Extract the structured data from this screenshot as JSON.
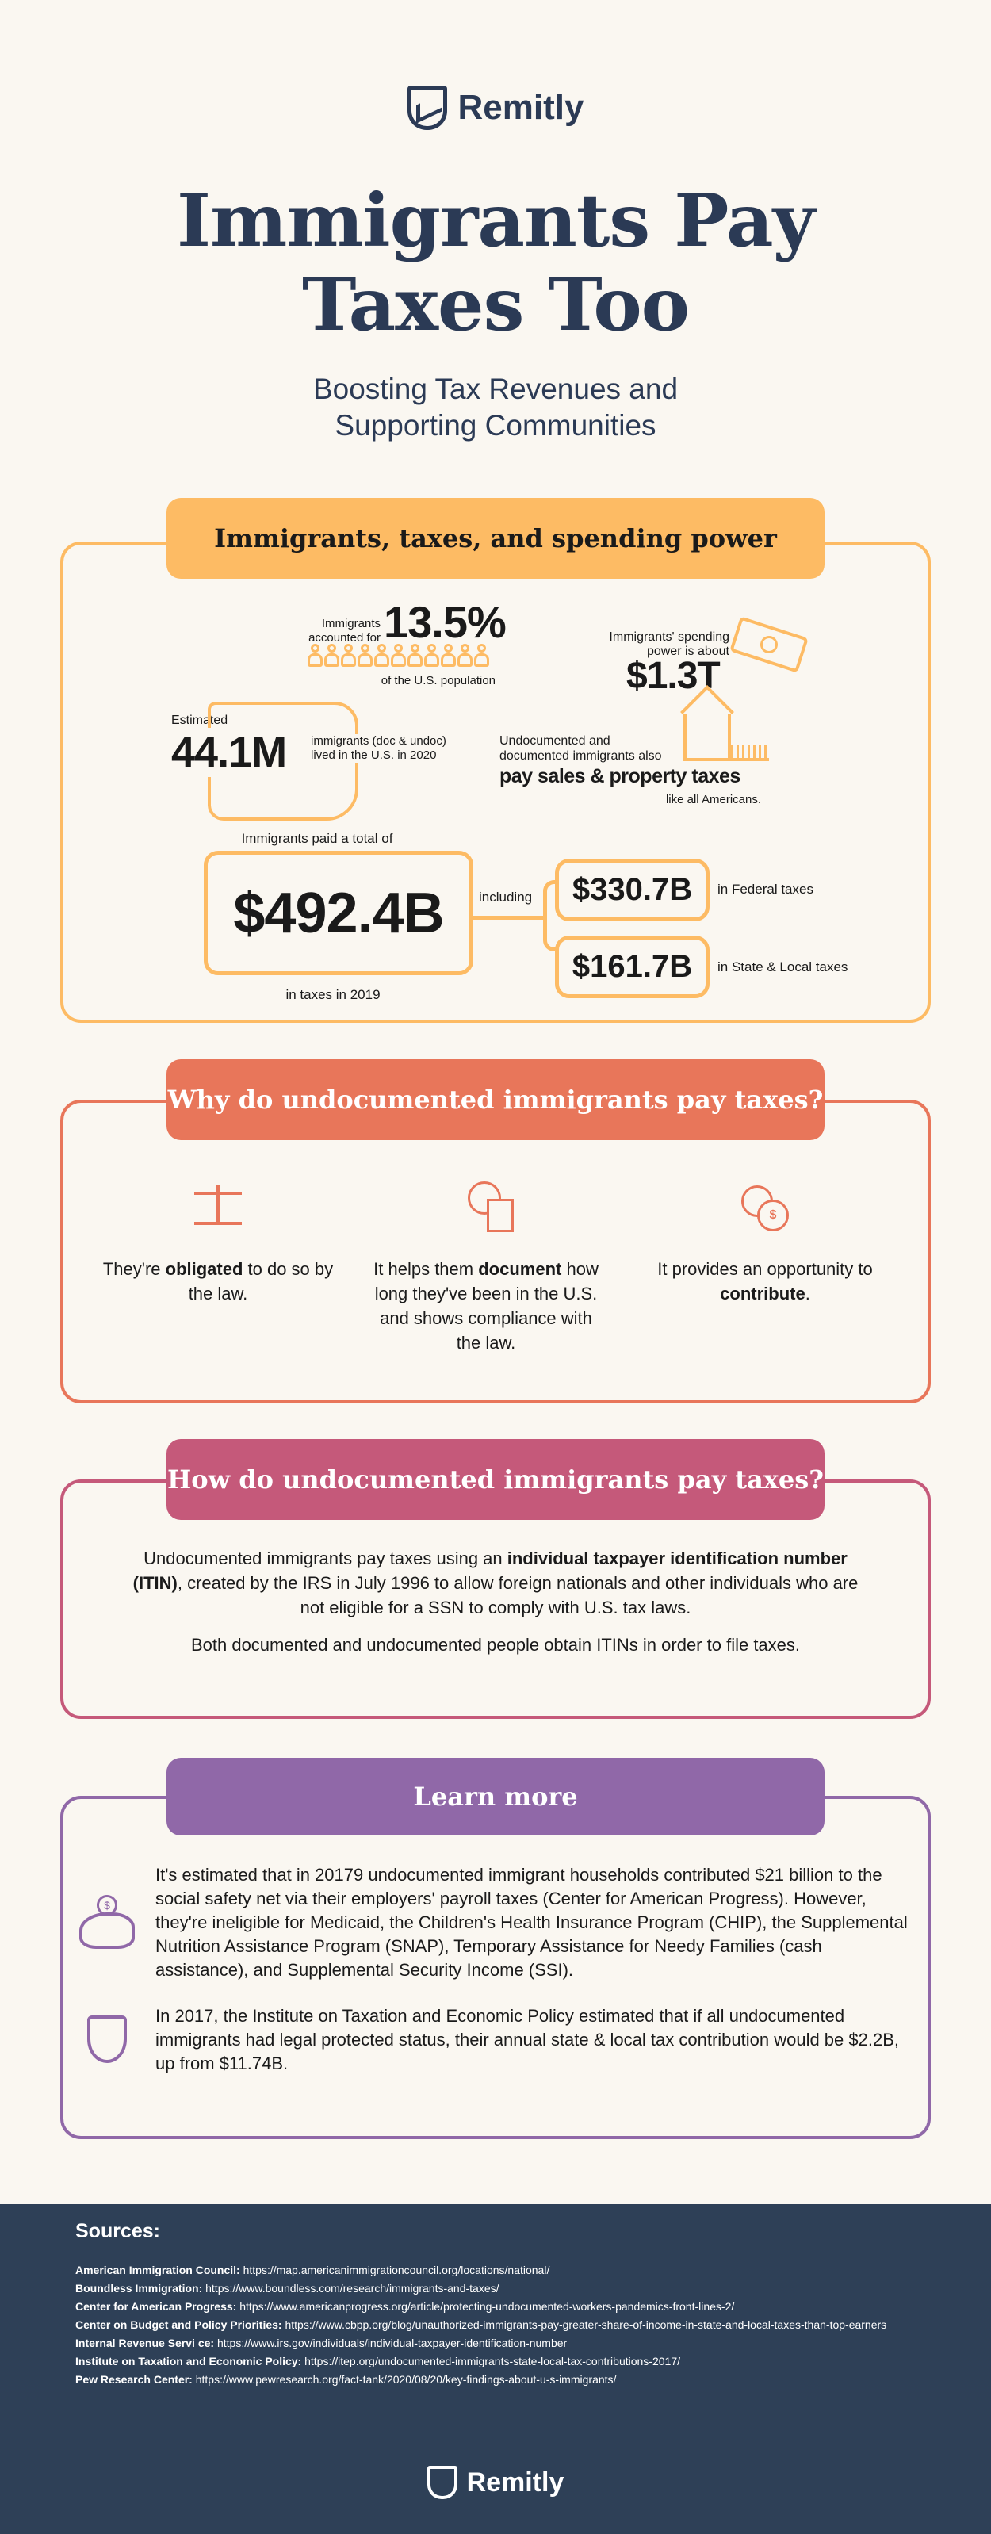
{
  "brand": "Remitly",
  "header": {
    "title_line1": "Immigrants Pay",
    "title_line2": "Taxes Too",
    "subtitle_line1": "Boosting Tax Revenues and",
    "subtitle_line2": "Supporting Communities"
  },
  "colors": {
    "navy": "#2b3a55",
    "orange": "#fdbb64",
    "coral": "#e8765a",
    "rose": "#c5597a",
    "purple": "#9068a8",
    "footer": "#2e4057",
    "background": "#faf7f1"
  },
  "section1": {
    "title": "Immigrants, taxes, and spending power",
    "population": {
      "pre1": "Immigrants",
      "pre2": "accounted for",
      "value": "13.5%",
      "post": "of the U.S. population",
      "icon": "people-icon"
    },
    "spending": {
      "pre1": "Immigrants' spending",
      "pre2": "power is about",
      "value": "$1.3T",
      "icon": "money-icon"
    },
    "count": {
      "pre": "Estimated",
      "value": "44.1M",
      "post1": "immigrants (doc & undoc)",
      "post2": "lived in the U.S. in 2020",
      "icon": "us-map-icon"
    },
    "property": {
      "pre1": "Undocumented and",
      "pre2": "documented immigrants also",
      "bold": "pay sales & property taxes",
      "post": "like all Americans.",
      "icon": "house-icon"
    },
    "total": {
      "pre": "Immigrants paid a total of",
      "value": "$492.4B",
      "post": "in taxes in 2019",
      "including": "including"
    },
    "federal": {
      "value": "$330.7B",
      "label": "in Federal taxes"
    },
    "state": {
      "value": "$161.7B",
      "label": "in State & Local taxes"
    }
  },
  "section2": {
    "title": "Why do undocumented immigrants pay taxes?",
    "items": [
      {
        "icon": "scales-icon",
        "a": "They're ",
        "b": "obligated",
        "c": " to do so by the law."
      },
      {
        "icon": "clock-document-icon",
        "a": "It helps them ",
        "b": "document",
        "c": " how long they've been in the U.S. and shows compliance with the law."
      },
      {
        "icon": "coins-icon",
        "a": "It provides an opportunity to ",
        "b": "contribute",
        "c": "."
      }
    ]
  },
  "section3": {
    "title": "How do undocumented immigrants pay taxes?",
    "p1a": "Undocumented immigrants pay taxes using an ",
    "p1b": "individual taxpayer identification number (ITIN)",
    "p1c": ", created by the IRS in July 1996 to allow foreign nationals and other individuals who are not eligible for a SSN to comply with U.S. tax laws.",
    "p2": "Both documented and undocumented people obtain ITINs in order to file taxes."
  },
  "section4": {
    "title": "Learn more",
    "items": [
      {
        "icon": "piggy-bank-icon",
        "text": "It's estimated that in 20179 undocumented immigrant households contributed $21 billion to the social safety net via their employers' payroll taxes (Center for American Progress). However, they're ineligible for Medicaid, the Children's Health Insurance Program (CHIP), the Supplemental Nutrition Assistance Program (SNAP), Temporary Assistance for Needy Families (cash assistance), and Supplemental Security Income (SSI)."
      },
      {
        "icon": "shield-icon",
        "text": "In 2017, the Institute on Taxation and Economic Policy estimated that if  all undocumented immigrants had legal protected status, their annual state & local tax contribution would be $2.2B, up from $11.74B."
      }
    ]
  },
  "sources": {
    "title": "Sources:",
    "items": [
      {
        "name": "American Immigration Council:",
        "url": " https://map.americanimmigrationcouncil.org/locations/national/"
      },
      {
        "name": "Boundless Immigration:",
        "url": " https://www.boundless.com/research/immigrants-and-taxes/"
      },
      {
        "name": "Center for American Progress:",
        "url": " https://www.americanprogress.org/article/protecting-undocumented-workers-pandemics-front-lines-2/"
      },
      {
        "name": "Center on Budget and Policy Priorities:",
        "url": " https://www.cbpp.org/blog/unauthorized-immigrants-pay-greater-share-of-income-in-state-and-local-taxes-than-top-earners"
      },
      {
        "name": "Internal Revenue Servi ce:",
        "url": " https://www.irs.gov/individuals/individual-taxpayer-identification-number"
      },
      {
        "name": "Institute on Taxation and Economic Policy:",
        "url": " https://itep.org/undocumented-immigrants-state-local-tax-contributions-2017/"
      },
      {
        "name": "Pew Research Center:",
        "url": " https://www.pewresearch.org/fact-tank/2020/08/20/key-findings-about-u-s-immigrants/"
      }
    ]
  }
}
